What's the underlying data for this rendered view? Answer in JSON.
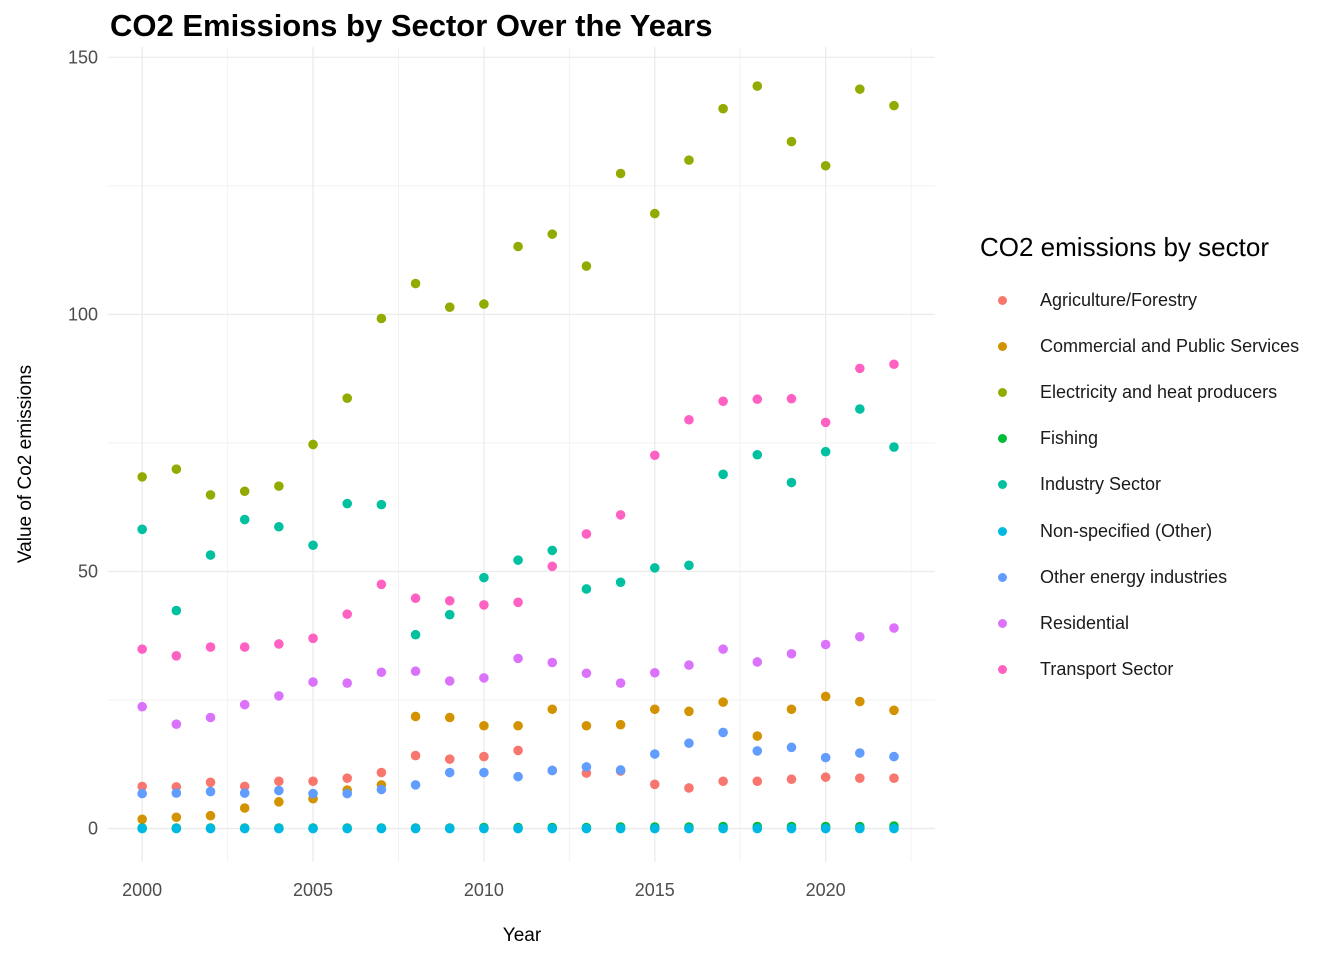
{
  "chart_data": {
    "type": "scatter",
    "title": "CO2 Emissions by Sector Over the Years",
    "xlabel": "Year",
    "ylabel": "Value of Co2 emissions",
    "xlim": [
      1999,
      2023.2
    ],
    "ylim": [
      -6.5,
      152
    ],
    "x_ticks": [
      2000,
      2005,
      2010,
      2015,
      2020
    ],
    "y_ticks": [
      0,
      50,
      100,
      150
    ],
    "grid": true,
    "legend_position": "right",
    "legend_title": "CO2 emissions by sector",
    "x": [
      2000,
      2001,
      2002,
      2003,
      2004,
      2005,
      2006,
      2007,
      2008,
      2009,
      2010,
      2011,
      2012,
      2013,
      2014,
      2015,
      2016,
      2017,
      2018,
      2019,
      2020,
      2021,
      2022
    ],
    "series": [
      {
        "name": "Agriculture/Forestry",
        "color": "#F8766D",
        "values": [
          8.2,
          8.1,
          9.0,
          8.2,
          9.2,
          9.2,
          9.8,
          10.9,
          14.2,
          13.5,
          14.0,
          15.2,
          11.3,
          10.8,
          11.2,
          8.6,
          7.9,
          9.2,
          9.2,
          9.6,
          10.0,
          9.8,
          9.8
        ]
      },
      {
        "name": "Commercial and Public Services",
        "color": "#D39200",
        "values": [
          1.8,
          2.2,
          2.5,
          4.0,
          5.2,
          5.8,
          7.5,
          8.5,
          21.8,
          21.6,
          20.0,
          20.0,
          23.2,
          20.0,
          20.2,
          23.2,
          22.8,
          24.6,
          18.0,
          23.2,
          25.7,
          24.7,
          23.0
        ]
      },
      {
        "name": "Electricity and heat producers",
        "color": "#93AA00",
        "values": [
          68.4,
          69.9,
          64.9,
          65.6,
          66.6,
          74.7,
          83.7,
          99.2,
          106.0,
          101.4,
          102.0,
          113.2,
          115.6,
          109.4,
          127.4,
          119.6,
          130.0,
          140.0,
          144.4,
          133.6,
          128.9,
          143.8,
          140.6
        ]
      },
      {
        "name": "Fishing",
        "color": "#00BA38",
        "values": [
          0.1,
          0.1,
          0.1,
          0.1,
          0.1,
          0.1,
          0.1,
          0.1,
          0.1,
          0.1,
          0.2,
          0.2,
          0.2,
          0.2,
          0.3,
          0.3,
          0.3,
          0.4,
          0.4,
          0.4,
          0.4,
          0.4,
          0.5
        ]
      },
      {
        "name": "Industry Sector",
        "color": "#00C19F",
        "values": [
          58.2,
          42.4,
          53.2,
          60.1,
          58.7,
          55.1,
          63.2,
          63.0,
          37.7,
          41.6,
          48.8,
          52.2,
          54.1,
          46.6,
          47.9,
          50.7,
          51.2,
          68.9,
          72.7,
          67.3,
          73.3,
          81.6,
          74.2
        ]
      },
      {
        "name": "Non-specified (Other)",
        "color": "#00B9E3",
        "values": [
          0,
          0,
          0,
          0,
          0,
          0,
          0,
          0,
          0,
          0,
          0,
          0,
          0,
          0,
          0,
          0,
          0,
          0,
          0,
          0,
          0,
          0,
          0
        ]
      },
      {
        "name": "Other energy industries",
        "color": "#619CFF",
        "values": [
          6.8,
          6.9,
          7.2,
          6.9,
          7.4,
          6.8,
          6.8,
          7.6,
          8.5,
          10.9,
          10.9,
          10.1,
          11.3,
          12.0,
          11.4,
          14.5,
          16.6,
          18.7,
          15.1,
          15.8,
          13.8,
          14.7,
          14.0
        ]
      },
      {
        "name": "Residential",
        "color": "#DB72FB",
        "values": [
          23.7,
          20.3,
          21.6,
          24.1,
          25.8,
          28.5,
          28.3,
          30.4,
          30.6,
          28.7,
          29.3,
          33.1,
          32.3,
          30.2,
          28.3,
          30.3,
          31.8,
          34.9,
          32.4,
          34.0,
          35.8,
          37.3,
          39.0
        ]
      },
      {
        "name": "Transport Sector",
        "color": "#FF61C3",
        "values": [
          34.9,
          33.6,
          35.3,
          35.3,
          35.9,
          37.0,
          41.7,
          47.5,
          44.8,
          44.3,
          43.5,
          44.0,
          51.0,
          57.3,
          61.0,
          72.6,
          79.5,
          83.1,
          83.5,
          83.6,
          79.0,
          89.5,
          90.3
        ]
      }
    ]
  }
}
